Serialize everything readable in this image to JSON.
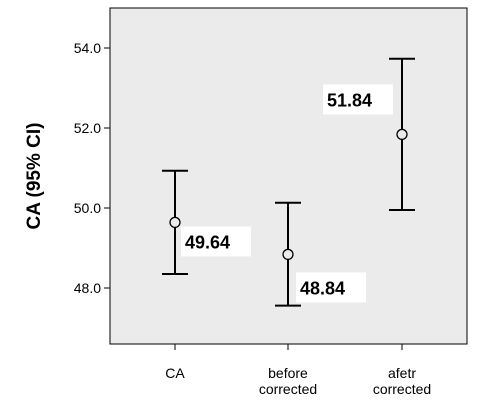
{
  "chart_data": {
    "type": "errorbar",
    "ylabel": "CA (95% CI)",
    "ylim": [
      46.6,
      55.0
    ],
    "yticks": [
      48.0,
      50.0,
      52.0,
      54.0
    ],
    "ytick_labels": [
      "48.0",
      "50.0",
      "52.0",
      "54.0"
    ],
    "grid": false,
    "categories": [
      {
        "label_lines": [
          "CA"
        ],
        "mean": 49.64,
        "lower": 48.35,
        "upper": 50.93,
        "value_label": "49.64"
      },
      {
        "label_lines": [
          "before",
          "corrected"
        ],
        "mean": 48.84,
        "lower": 47.56,
        "upper": 50.13,
        "value_label": "48.84"
      },
      {
        "label_lines": [
          "afetr",
          "corrected"
        ],
        "mean": 51.84,
        "lower": 49.95,
        "upper": 53.73,
        "value_label": "51.84"
      }
    ],
    "colors": {
      "plot_background": "#ebebeb",
      "marks": "#000000",
      "label_background": "#ffffff"
    }
  }
}
